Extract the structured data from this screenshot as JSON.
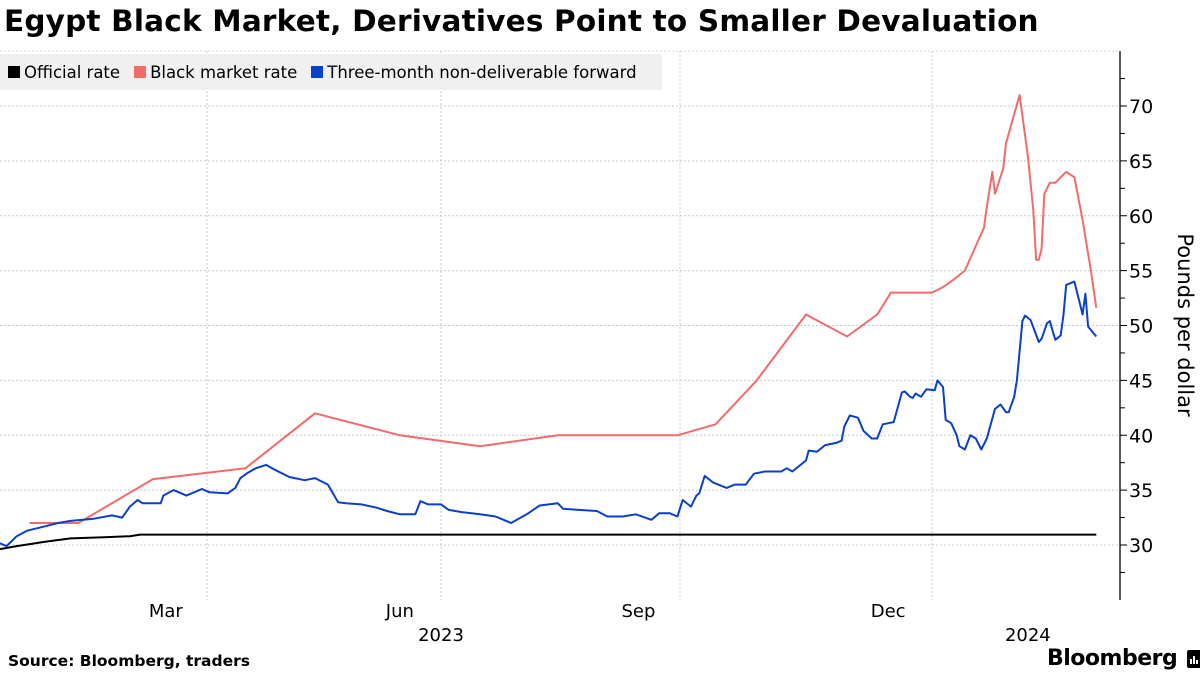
{
  "chart_data": {
    "type": "line",
    "title": "Egypt Black Market, Derivatives Point to Smaller Devaluation",
    "ylabel": "Pounds per dollar",
    "xlabel": "",
    "ylim": [
      25,
      75
    ],
    "yticks": [
      30,
      35,
      40,
      45,
      50,
      55,
      60,
      65,
      70
    ],
    "y_axis_position": "right",
    "grid": true,
    "legend_position": "top-left",
    "x_month_labels": [
      {
        "label": "Mar",
        "date": "2023-03-16"
      },
      {
        "label": "Jun",
        "date": "2023-06-15"
      },
      {
        "label": "Sep",
        "date": "2023-09-15"
      },
      {
        "label": "Dec",
        "date": "2023-12-16"
      }
    ],
    "x_year_labels": [
      {
        "label": "2023",
        "date": "2023-07-01"
      },
      {
        "label": "2024",
        "date": "2024-02-05"
      }
    ],
    "x_gridlines": [
      "2023-04-01",
      "2023-07-01",
      "2023-10-01",
      "2024-01-01"
    ],
    "series": [
      {
        "name": "Official rate",
        "color": "#000000",
        "points": [
          [
            "2023-01-10",
            29.6
          ],
          [
            "2023-01-17",
            29.9
          ],
          [
            "2023-01-28",
            30.3
          ],
          [
            "2023-02-07",
            30.6
          ],
          [
            "2023-02-20",
            30.7
          ],
          [
            "2023-03-02",
            30.8
          ],
          [
            "2023-03-06",
            30.95
          ],
          [
            "2023-06-01",
            30.95
          ],
          [
            "2023-09-01",
            30.95
          ],
          [
            "2023-12-01",
            30.95
          ],
          [
            "2024-03-01",
            30.95
          ]
        ]
      },
      {
        "name": "Black market rate",
        "color": "#f26b6b",
        "points": [
          [
            "2023-01-22",
            32
          ],
          [
            "2023-02-10",
            32
          ],
          [
            "2023-03-11",
            36
          ],
          [
            "2023-04-16",
            37
          ],
          [
            "2023-05-13",
            42
          ],
          [
            "2023-06-15",
            40
          ],
          [
            "2023-07-16",
            39
          ],
          [
            "2023-08-15",
            40
          ],
          [
            "2023-09-30",
            40
          ],
          [
            "2023-10-14",
            41
          ],
          [
            "2023-10-29",
            45
          ],
          [
            "2023-11-16",
            51
          ],
          [
            "2023-12-01",
            49
          ],
          [
            "2023-12-12",
            51
          ],
          [
            "2023-12-17",
            53
          ],
          [
            "2024-01-01",
            53
          ],
          [
            "2024-01-05",
            53.5
          ],
          [
            "2024-01-09",
            54.2
          ],
          [
            "2024-01-13",
            55
          ],
          [
            "2024-01-16",
            56.7
          ],
          [
            "2024-01-20",
            58.9
          ],
          [
            "2024-01-21",
            60.8
          ],
          [
            "2024-01-23",
            64
          ],
          [
            "2024-01-24",
            62
          ],
          [
            "2024-01-27",
            64.3
          ],
          [
            "2024-01-28",
            66.6
          ],
          [
            "2024-02-02",
            71
          ],
          [
            "2024-02-05",
            65.4
          ],
          [
            "2024-02-07",
            60.5
          ],
          [
            "2024-02-08",
            56
          ],
          [
            "2024-02-09",
            56
          ],
          [
            "2024-02-10",
            57
          ],
          [
            "2024-02-11",
            62
          ],
          [
            "2024-02-13",
            63
          ],
          [
            "2024-02-15",
            63
          ],
          [
            "2024-02-17",
            63.5
          ],
          [
            "2024-02-19",
            64
          ],
          [
            "2024-02-22",
            63.5
          ],
          [
            "2024-02-25",
            59.6
          ],
          [
            "2024-02-28",
            55
          ],
          [
            "2024-03-01",
            51.6
          ]
        ]
      },
      {
        "name": "Three-month non-deliverable forward",
        "color": "#0a3fcc",
        "points": [
          [
            "2023-01-10",
            30.2
          ],
          [
            "2023-01-13",
            29.9
          ],
          [
            "2023-01-17",
            30.8
          ],
          [
            "2023-01-21",
            31.3
          ],
          [
            "2023-01-28",
            31.7
          ],
          [
            "2023-02-02",
            32.0
          ],
          [
            "2023-02-07",
            32.2
          ],
          [
            "2023-02-16",
            32.4
          ],
          [
            "2023-02-23",
            32.7
          ],
          [
            "2023-02-27",
            32.5
          ],
          [
            "2023-03-02",
            33.5
          ],
          [
            "2023-03-05",
            34.1
          ],
          [
            "2023-03-07",
            33.8
          ],
          [
            "2023-03-14",
            33.8
          ],
          [
            "2023-03-15",
            34.5
          ],
          [
            "2023-03-19",
            35.0
          ],
          [
            "2023-03-24",
            34.5
          ],
          [
            "2023-03-30",
            35.1
          ],
          [
            "2023-04-02",
            34.8
          ],
          [
            "2023-04-09",
            34.7
          ],
          [
            "2023-04-12",
            35.2
          ],
          [
            "2023-04-14",
            36.1
          ],
          [
            "2023-04-17",
            36.6
          ],
          [
            "2023-04-20",
            37.0
          ],
          [
            "2023-04-24",
            37.3
          ],
          [
            "2023-04-27",
            36.9
          ],
          [
            "2023-05-03",
            36.2
          ],
          [
            "2023-05-09",
            35.9
          ],
          [
            "2023-05-13",
            36.1
          ],
          [
            "2023-05-18",
            35.5
          ],
          [
            "2023-05-22",
            33.9
          ],
          [
            "2023-05-25",
            33.8
          ],
          [
            "2023-05-31",
            33.7
          ],
          [
            "2023-06-06",
            33.4
          ],
          [
            "2023-06-10",
            33.1
          ],
          [
            "2023-06-15",
            32.8
          ],
          [
            "2023-06-21",
            32.8
          ],
          [
            "2023-06-23",
            34.0
          ],
          [
            "2023-06-26",
            33.7
          ],
          [
            "2023-07-01",
            33.7
          ],
          [
            "2023-07-04",
            33.2
          ],
          [
            "2023-07-09",
            33.0
          ],
          [
            "2023-07-16",
            32.8
          ],
          [
            "2023-07-22",
            32.6
          ],
          [
            "2023-07-28",
            32.0
          ],
          [
            "2023-08-03",
            32.8
          ],
          [
            "2023-08-08",
            33.6
          ],
          [
            "2023-08-15",
            33.8
          ],
          [
            "2023-08-17",
            33.3
          ],
          [
            "2023-08-23",
            33.2
          ],
          [
            "2023-08-30",
            33.1
          ],
          [
            "2023-09-03",
            32.6
          ],
          [
            "2023-09-09",
            32.6
          ],
          [
            "2023-09-14",
            32.8
          ],
          [
            "2023-09-20",
            32.3
          ],
          [
            "2023-09-23",
            32.9
          ],
          [
            "2023-09-27",
            32.9
          ],
          [
            "2023-09-30",
            32.6
          ],
          [
            "2023-10-02",
            34.1
          ],
          [
            "2023-10-05",
            33.5
          ],
          [
            "2023-10-07",
            34.5
          ],
          [
            "2023-10-08",
            34.7
          ],
          [
            "2023-10-10",
            36.3
          ],
          [
            "2023-10-13",
            35.7
          ],
          [
            "2023-10-18",
            35.2
          ],
          [
            "2023-10-21",
            35.5
          ],
          [
            "2023-10-25",
            35.5
          ],
          [
            "2023-10-28",
            36.5
          ],
          [
            "2023-11-01",
            36.7
          ],
          [
            "2023-11-07",
            36.7
          ],
          [
            "2023-11-09",
            37.0
          ],
          [
            "2023-11-11",
            36.7
          ],
          [
            "2023-11-16",
            37.7
          ],
          [
            "2023-11-17",
            38.6
          ],
          [
            "2023-11-20",
            38.5
          ],
          [
            "2023-11-23",
            39.1
          ],
          [
            "2023-11-27",
            39.3
          ],
          [
            "2023-11-29",
            39.5
          ],
          [
            "2023-11-30",
            40.8
          ],
          [
            "2023-12-02",
            41.8
          ],
          [
            "2023-12-05",
            41.6
          ],
          [
            "2023-12-07",
            40.4
          ],
          [
            "2023-12-10",
            39.7
          ],
          [
            "2023-12-12",
            39.7
          ],
          [
            "2023-12-14",
            41.0
          ],
          [
            "2023-12-18",
            41.2
          ],
          [
            "2023-12-21",
            43.9
          ],
          [
            "2023-12-22",
            44.0
          ],
          [
            "2023-12-24",
            43.5
          ],
          [
            "2023-12-25",
            43.4
          ],
          [
            "2023-12-26",
            43.8
          ],
          [
            "2023-12-28",
            43.5
          ],
          [
            "2023-12-30",
            44.2
          ],
          [
            "2024-01-02",
            44.1
          ],
          [
            "2024-01-03",
            45.0
          ],
          [
            "2024-01-05",
            44.4
          ],
          [
            "2024-01-06",
            41.4
          ],
          [
            "2024-01-08",
            41.1
          ],
          [
            "2024-01-10",
            40.0
          ],
          [
            "2024-01-11",
            39.0
          ],
          [
            "2024-01-13",
            38.7
          ],
          [
            "2024-01-15",
            40.0
          ],
          [
            "2024-01-17",
            39.7
          ],
          [
            "2024-01-19",
            38.7
          ],
          [
            "2024-01-21",
            39.7
          ],
          [
            "2024-01-24",
            42.4
          ],
          [
            "2024-01-26",
            42.8
          ],
          [
            "2024-01-28",
            42.1
          ],
          [
            "2024-01-29",
            42.1
          ],
          [
            "2024-01-31",
            43.5
          ],
          [
            "2024-02-01",
            45.0
          ],
          [
            "2024-02-03",
            50.4
          ],
          [
            "2024-02-04",
            50.9
          ],
          [
            "2024-02-06",
            50.5
          ],
          [
            "2024-02-09",
            48.5
          ],
          [
            "2024-02-10",
            48.8
          ],
          [
            "2024-02-12",
            50.2
          ],
          [
            "2024-02-13",
            50.4
          ],
          [
            "2024-02-15",
            48.7
          ],
          [
            "2024-02-17",
            49.1
          ],
          [
            "2024-02-18",
            51.0
          ],
          [
            "2024-02-19",
            53.7
          ],
          [
            "2024-02-22",
            54.0
          ],
          [
            "2024-02-25",
            51.0
          ],
          [
            "2024-02-26",
            52.9
          ],
          [
            "2024-02-27",
            49.9
          ],
          [
            "2024-03-01",
            49.0
          ]
        ]
      }
    ]
  },
  "legend": {
    "items": [
      {
        "label": "Official rate",
        "color": "#000000"
      },
      {
        "label": "Black market rate",
        "color": "#f26b6b"
      },
      {
        "label": "Three-month non-deliverable forward",
        "color": "#0a3fcc"
      }
    ]
  },
  "footer": {
    "source": "Source: Bloomberg, traders",
    "brand": "Bloomberg"
  }
}
